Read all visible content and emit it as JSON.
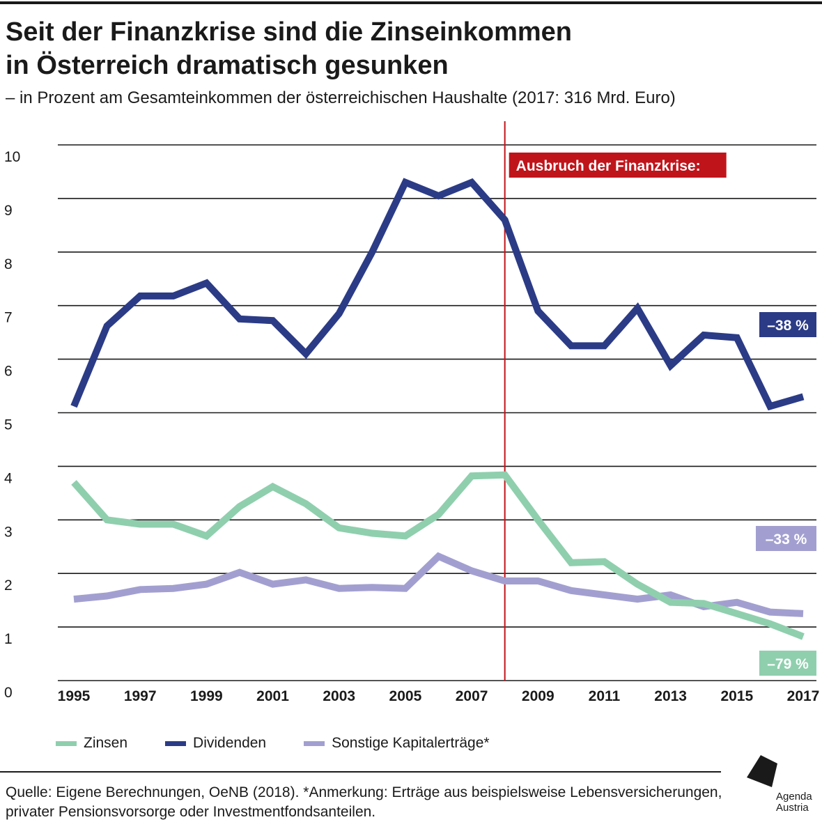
{
  "header": {
    "title_line1": "Seit der Finanzkrise sind die Zinseinkommen",
    "title_line2": "in Österreich dramatisch gesunken",
    "subtitle": "– in Prozent am Gesamteinkommen der österreichischen Haushalte (2017: 316 Mrd. Euro)"
  },
  "chart_data": {
    "type": "line",
    "x": [
      1995,
      1996,
      1997,
      1998,
      1999,
      2000,
      2001,
      2002,
      2003,
      2004,
      2005,
      2006,
      2007,
      2008,
      2009,
      2010,
      2011,
      2012,
      2013,
      2014,
      2015,
      2016,
      2017
    ],
    "x_tick_labels": [
      "1995",
      "1997",
      "1999",
      "2001",
      "2003",
      "2005",
      "2007",
      "2009",
      "2011",
      "2013",
      "2015",
      "2017"
    ],
    "y_tick_labels": [
      "0",
      "1",
      "2",
      "3",
      "4",
      "5",
      "6",
      "7",
      "8",
      "9",
      "10"
    ],
    "ylim": [
      0,
      10
    ],
    "grid": true,
    "series": [
      {
        "name": "Zinsen",
        "color": "#8fcfae",
        "values": [
          3.7,
          3.0,
          2.92,
          2.92,
          2.7,
          3.25,
          3.62,
          3.3,
          2.85,
          2.75,
          2.7,
          3.1,
          3.82,
          3.84,
          3.0,
          2.2,
          2.22,
          1.8,
          1.46,
          1.44,
          1.25,
          1.06,
          0.82
        ],
        "change_label": "–79 %"
      },
      {
        "name": "Dividenden",
        "color": "#2b3b86",
        "values": [
          5.12,
          6.62,
          7.18,
          7.18,
          7.42,
          6.75,
          6.72,
          6.1,
          6.85,
          8.0,
          9.3,
          9.05,
          9.3,
          8.6,
          6.9,
          6.25,
          6.25,
          6.95,
          5.88,
          6.45,
          6.4,
          5.12,
          5.3
        ],
        "change_label": "–38 %"
      },
      {
        "name": "Sonstige Kapitalerträge*",
        "color": "#a29fd0",
        "values": [
          1.52,
          1.58,
          1.7,
          1.72,
          1.8,
          2.02,
          1.8,
          1.88,
          1.72,
          1.74,
          1.72,
          2.32,
          2.05,
          1.86,
          1.86,
          1.68,
          1.6,
          1.52,
          1.6,
          1.38,
          1.46,
          1.28,
          1.25
        ],
        "change_label": "–33 %"
      }
    ],
    "annotation": {
      "label": "Ausbruch der Finanzkrise:",
      "x": 2008,
      "color": "#c0141b"
    },
    "legend_position": "bottom-left"
  },
  "footer": {
    "source": "Quelle: Eigene Berechnungen, OeNB (2018). *Anmerkung: Erträge aus beispielsweise Lebensversicherungen, privater Pensionsvorsorge oder Investmentfondsanteilen.",
    "logo_line1": "Agenda",
    "logo_line2": "Austria"
  }
}
